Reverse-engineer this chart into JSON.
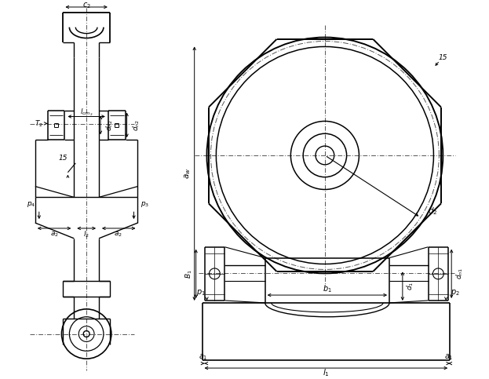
{
  "bg_color": "#ffffff",
  "line_color": "#000000",
  "fig_width": 6.23,
  "fig_height": 4.83,
  "dpi": 100
}
